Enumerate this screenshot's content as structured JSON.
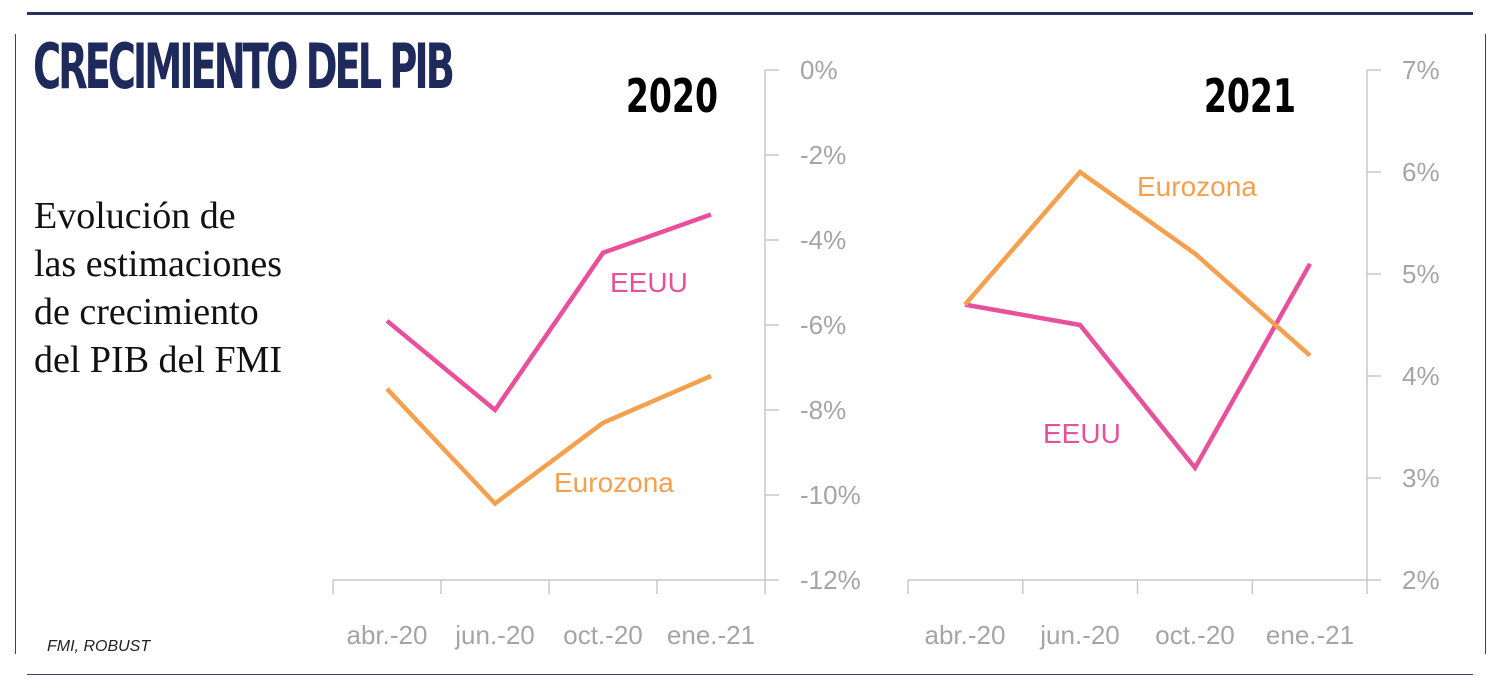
{
  "title": "CRECIMIENTO DEL PIB",
  "subtitle": "Evolución de las estimaciones de crecimiento del PIB del FMI",
  "source": "FMI, ROBUST",
  "colors": {
    "eeuu": "#e8509b",
    "eurozona": "#f4a04e",
    "title": "#1f2a5c"
  },
  "chart_data": [
    {
      "type": "line",
      "title": "2020",
      "x": [
        "abr.-20",
        "jun.-20",
        "oct.-20",
        "ene.-21"
      ],
      "ylim": [
        -12,
        0
      ],
      "yticks": [
        0,
        -2,
        -4,
        -6,
        -8,
        -10,
        -12
      ],
      "ytick_labels": [
        "0%",
        "-2%",
        "-4%",
        "-6%",
        "-8%",
        "-10%",
        "-12%"
      ],
      "series": [
        {
          "name": "EEUU",
          "values": [
            -5.9,
            -8.0,
            -4.3,
            -3.4
          ]
        },
        {
          "name": "Eurozona",
          "values": [
            -7.5,
            -10.2,
            -8.3,
            -7.2
          ]
        }
      ]
    },
    {
      "type": "line",
      "title": "2021",
      "x": [
        "abr.-20",
        "jun.-20",
        "oct.-20",
        "ene.-21"
      ],
      "ylim": [
        2,
        7
      ],
      "yticks": [
        7,
        6,
        5,
        4,
        3,
        2
      ],
      "ytick_labels": [
        "7%",
        "6%",
        "5%",
        "4%",
        "3%",
        "2%"
      ],
      "series": [
        {
          "name": "EEUU",
          "values": [
            4.7,
            4.5,
            3.1,
            5.1
          ]
        },
        {
          "name": "Eurozona",
          "values": [
            4.7,
            6.0,
            5.2,
            4.2
          ]
        }
      ]
    }
  ]
}
